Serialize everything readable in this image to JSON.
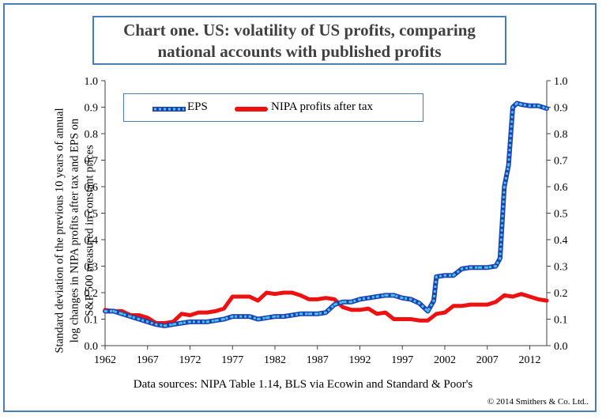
{
  "title": {
    "line1": "Chart one. US: volatility of US profits, comparing",
    "line2": "national accounts with published profits"
  },
  "y_axis_label": {
    "line1": "Standard deviation of the previous 10 years of annual",
    "line2": "log changes in NIPA profits after tax and EPS on",
    "line3": "S&P 500 measured in constant prices"
  },
  "source_note": "Data sources: NIPA Table 1.14, BLS via Ecowin and Standard & Poor's",
  "copyright": "© 2014 Smithers & Co. Ltd..",
  "legend": {
    "eps_label": "EPS",
    "nipa_label": "NIPA profits after tax"
  },
  "colors": {
    "eps_main": "#1f3fb3",
    "eps_marker": "#45c4e8",
    "nipa": "#ee1111",
    "axis": "#404040",
    "border": "#4a7ebb"
  },
  "chart_data": {
    "type": "line",
    "title": "Chart one. US: volatility of US profits, comparing national accounts with published profits",
    "xlabel": "Data sources: NIPA Table 1.14, BLS via Ecowin and Standard & Poor's",
    "ylabel": "Standard deviation of the previous 10 years of annual log changes in NIPA profits after tax and EPS on S&P 500 measured in constant prices",
    "xlim": [
      1962,
      2014
    ],
    "ylim": [
      0,
      1
    ],
    "x_ticks": [
      "1962",
      "1967",
      "1972",
      "1977",
      "1982",
      "1987",
      "1992",
      "1997",
      "2002",
      "2007",
      "2012"
    ],
    "y_ticks_left": [
      "0.0",
      "0.1",
      "0.2",
      "0.3",
      "0.4",
      "0.5",
      "0.6",
      "0.7",
      "0.8",
      "0.9",
      "1.0"
    ],
    "y_ticks_right": [
      "0.0",
      "0.1",
      "0.2",
      "0.3",
      "0.4",
      "0.5",
      "0.6",
      "0.7",
      "0.8",
      "0.9",
      "1.0"
    ],
    "series": [
      {
        "name": "EPS",
        "points": [
          [
            1962,
            0.13
          ],
          [
            1963,
            0.13
          ],
          [
            1964,
            0.12
          ],
          [
            1965,
            0.11
          ],
          [
            1966,
            0.1
          ],
          [
            1967,
            0.09
          ],
          [
            1968,
            0.08
          ],
          [
            1969,
            0.075
          ],
          [
            1970,
            0.08
          ],
          [
            1971,
            0.085
          ],
          [
            1972,
            0.09
          ],
          [
            1973,
            0.09
          ],
          [
            1974,
            0.09
          ],
          [
            1975,
            0.095
          ],
          [
            1976,
            0.1
          ],
          [
            1977,
            0.11
          ],
          [
            1978,
            0.11
          ],
          [
            1979,
            0.11
          ],
          [
            1980,
            0.1
          ],
          [
            1981,
            0.105
          ],
          [
            1982,
            0.11
          ],
          [
            1983,
            0.11
          ],
          [
            1984,
            0.115
          ],
          [
            1985,
            0.12
          ],
          [
            1986,
            0.12
          ],
          [
            1987,
            0.12
          ],
          [
            1988,
            0.125
          ],
          [
            1989,
            0.155
          ],
          [
            1990,
            0.165
          ],
          [
            1991,
            0.165
          ],
          [
            1992,
            0.175
          ],
          [
            1993,
            0.18
          ],
          [
            1994,
            0.185
          ],
          [
            1995,
            0.19
          ],
          [
            1996,
            0.19
          ],
          [
            1997,
            0.18
          ],
          [
            1998,
            0.175
          ],
          [
            1999,
            0.16
          ],
          [
            2000,
            0.13
          ],
          [
            2000.7,
            0.17
          ],
          [
            2001,
            0.26
          ],
          [
            2002,
            0.265
          ],
          [
            2003,
            0.265
          ],
          [
            2004,
            0.29
          ],
          [
            2005,
            0.295
          ],
          [
            2006,
            0.295
          ],
          [
            2007,
            0.295
          ],
          [
            2008,
            0.3
          ],
          [
            2008.5,
            0.33
          ],
          [
            2009,
            0.6
          ],
          [
            2009.5,
            0.68
          ],
          [
            2010,
            0.9
          ],
          [
            2010.5,
            0.915
          ],
          [
            2011,
            0.91
          ],
          [
            2012,
            0.905
          ],
          [
            2013,
            0.905
          ],
          [
            2014,
            0.895
          ]
        ]
      },
      {
        "name": "NIPA profits after tax",
        "points": [
          [
            1962,
            0.135
          ],
          [
            1963,
            0.13
          ],
          [
            1964,
            0.13
          ],
          [
            1965,
            0.115
          ],
          [
            1966,
            0.115
          ],
          [
            1967,
            0.105
          ],
          [
            1968,
            0.085
          ],
          [
            1969,
            0.085
          ],
          [
            1970,
            0.09
          ],
          [
            1971,
            0.12
          ],
          [
            1972,
            0.115
          ],
          [
            1973,
            0.125
          ],
          [
            1974,
            0.125
          ],
          [
            1975,
            0.13
          ],
          [
            1976,
            0.14
          ],
          [
            1977,
            0.185
          ],
          [
            1978,
            0.185
          ],
          [
            1979,
            0.185
          ],
          [
            1980,
            0.17
          ],
          [
            1981,
            0.2
          ],
          [
            1982,
            0.195
          ],
          [
            1983,
            0.2
          ],
          [
            1984,
            0.2
          ],
          [
            1985,
            0.19
          ],
          [
            1986,
            0.175
          ],
          [
            1987,
            0.175
          ],
          [
            1988,
            0.18
          ],
          [
            1989,
            0.175
          ],
          [
            1990,
            0.145
          ],
          [
            1991,
            0.135
          ],
          [
            1992,
            0.135
          ],
          [
            1993,
            0.14
          ],
          [
            1994,
            0.12
          ],
          [
            1995,
            0.125
          ],
          [
            1996,
            0.1
          ],
          [
            1997,
            0.1
          ],
          [
            1998,
            0.1
          ],
          [
            1999,
            0.095
          ],
          [
            2000,
            0.095
          ],
          [
            2001,
            0.12
          ],
          [
            2002,
            0.125
          ],
          [
            2003,
            0.15
          ],
          [
            2004,
            0.15
          ],
          [
            2005,
            0.155
          ],
          [
            2006,
            0.155
          ],
          [
            2007,
            0.155
          ],
          [
            2008,
            0.165
          ],
          [
            2009,
            0.19
          ],
          [
            2010,
            0.185
          ],
          [
            2011,
            0.195
          ],
          [
            2012,
            0.185
          ],
          [
            2013,
            0.175
          ],
          [
            2014,
            0.17
          ]
        ]
      }
    ]
  }
}
